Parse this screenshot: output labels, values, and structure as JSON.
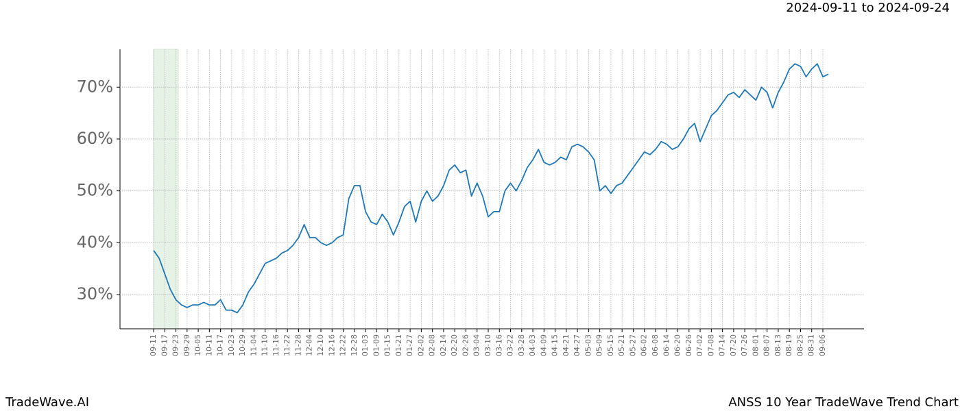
{
  "header": {
    "date_range": "2024-09-11 to 2024-09-24"
  },
  "footer": {
    "brand": "TradeWave.AI",
    "chart_name": "ANSS 10 Year TradeWave Trend Chart"
  },
  "chart_data": {
    "type": "line",
    "categories": [
      "09-11",
      null,
      "09-17",
      null,
      "09-23",
      null,
      "09-29",
      null,
      "10-05",
      null,
      "10-11",
      null,
      "10-17",
      null,
      "10-23",
      null,
      "10-29",
      null,
      "11-04",
      null,
      "11-10",
      null,
      "11-16",
      null,
      "11-22",
      null,
      "11-28",
      null,
      "12-04",
      null,
      "12-10",
      null,
      "12-16",
      null,
      "12-22",
      null,
      "12-28",
      null,
      "01-03",
      null,
      "01-09",
      null,
      "01-15",
      null,
      "01-21",
      null,
      "01-27",
      null,
      "02-02",
      null,
      "02-08",
      null,
      "02-14",
      null,
      "02-20",
      null,
      "02-26",
      null,
      "03-04",
      null,
      "03-10",
      null,
      "03-16",
      null,
      "03-22",
      null,
      "03-28",
      null,
      "04-03",
      null,
      "04-09",
      null,
      "04-15",
      null,
      "04-21",
      null,
      "04-27",
      null,
      "05-03",
      null,
      "05-09",
      null,
      "05-15",
      null,
      "05-21",
      null,
      "05-27",
      null,
      "06-02",
      null,
      "06-08",
      null,
      "06-14",
      null,
      "06-20",
      null,
      "06-26",
      null,
      "07-02",
      null,
      "07-08",
      null,
      "07-14",
      null,
      "07-20",
      null,
      "07-26",
      null,
      "08-01",
      null,
      "08-07",
      null,
      "08-13",
      null,
      "08-19",
      null,
      "08-25",
      null,
      "08-31",
      null,
      "09-06",
      null
    ],
    "values": [
      38.5,
      37,
      34,
      31,
      29,
      28,
      27.5,
      28,
      28,
      28.5,
      28,
      28,
      29,
      27,
      27,
      26.5,
      28,
      30.5,
      32,
      34,
      36,
      36.5,
      37,
      38,
      38.5,
      39.5,
      41,
      43.5,
      41,
      41,
      40,
      39.5,
      40,
      41,
      41.5,
      48.5,
      51,
      51,
      46,
      44,
      43.5,
      45.5,
      44,
      41.5,
      44,
      47,
      48,
      44,
      48,
      50,
      48,
      49,
      51,
      54,
      55,
      53.5,
      54,
      49,
      51.5,
      49,
      45,
      46,
      46,
      50,
      51.5,
      50,
      52,
      54.5,
      56,
      58,
      55.5,
      55,
      55.5,
      56.5,
      56,
      58.5,
      59,
      58.5,
      57.5,
      56,
      50,
      51,
      49.5,
      51,
      51.5,
      53,
      54.5,
      56,
      57.5,
      57,
      58,
      59.5,
      59,
      58,
      58.5,
      60,
      62,
      63,
      59.5,
      62,
      64.5,
      65.5,
      67,
      68.5,
      69,
      68,
      69.5,
      68.5,
      67.5,
      70,
      69,
      66,
      69,
      71,
      73.5,
      74.5,
      74,
      72,
      73.5,
      74.5,
      72,
      72.5
    ],
    "color": "#1f77b4",
    "ylim": [
      23.4,
      77.3
    ],
    "yticks": [
      {
        "value": 30,
        "label": "30%"
      },
      {
        "value": 40,
        "label": "40%"
      },
      {
        "value": 50,
        "label": "50%"
      },
      {
        "value": 60,
        "label": "60%"
      },
      {
        "value": 70,
        "label": "70%"
      }
    ],
    "grid": true
  }
}
